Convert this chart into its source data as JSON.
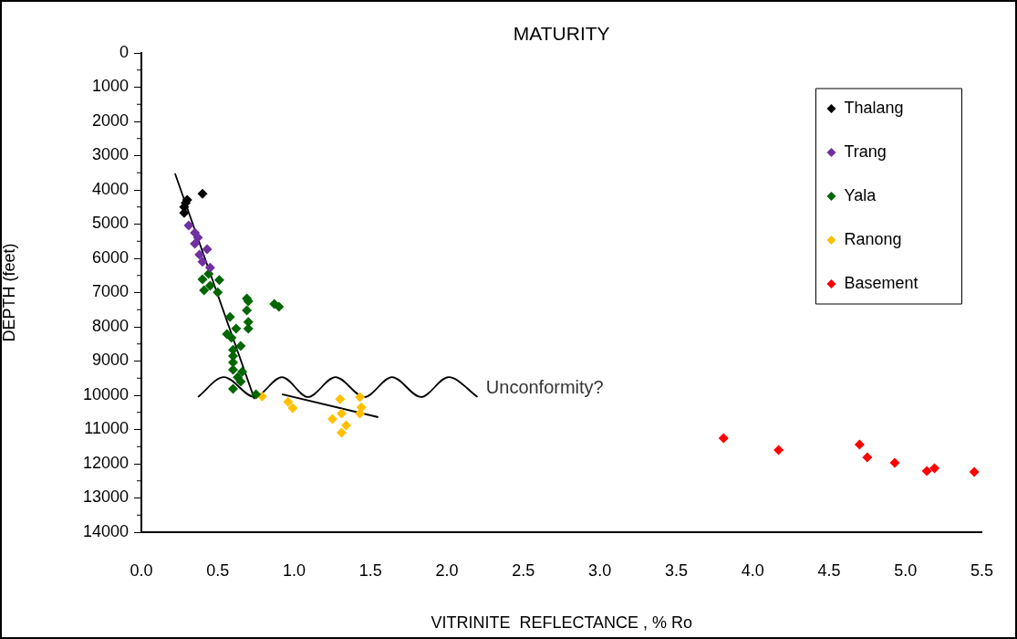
{
  "chart_data": {
    "type": "scatter",
    "title": "MATURITY",
    "xlabel": "VITRINITE  REFLECTANCE , % Ro",
    "ylabel": "DEPTH (feet)",
    "xlim": [
      0,
      5.5
    ],
    "xticks": [
      {
        "value": 0,
        "label": "0.0"
      },
      {
        "value": 0.5,
        "label": "0.5"
      },
      {
        "value": 1,
        "label": "1.0"
      },
      {
        "value": 1.5,
        "label": "1.5"
      },
      {
        "value": 2,
        "label": "2.0"
      },
      {
        "value": 2.5,
        "label": "2.5"
      },
      {
        "value": 3,
        "label": "3.0"
      },
      {
        "value": 3.5,
        "label": "3.5"
      },
      {
        "value": 4,
        "label": "4.0"
      },
      {
        "value": 4.5,
        "label": "4.5"
      },
      {
        "value": 5,
        "label": "5.0"
      },
      {
        "value": 5.5,
        "label": "5.5"
      }
    ],
    "ylim": [
      14000,
      0
    ],
    "yticks": [
      0,
      1000,
      2000,
      3000,
      4000,
      5000,
      6000,
      7000,
      8000,
      9000,
      10000,
      11000,
      12000,
      13000,
      14000
    ],
    "grid": false,
    "legend": "top right",
    "marker": "diamond",
    "annotations": [
      "Unconformity?"
    ],
    "series": [
      {
        "name": "Thalang",
        "color": "#000000",
        "x": [
          0.3,
          0.28,
          0.28,
          0.4,
          0.29
        ],
        "values": [
          4290,
          4500,
          4670,
          4110,
          4380
        ]
      },
      {
        "name": "Trang",
        "color": "#7030a0",
        "x": [
          0.31,
          0.35,
          0.37,
          0.35,
          0.43,
          0.38,
          0.4,
          0.45
        ],
        "values": [
          5040,
          5250,
          5390,
          5570,
          5730,
          5890,
          6100,
          6270
        ]
      },
      {
        "name": "Yala",
        "color": "#006600",
        "x": [
          0.44,
          0.4,
          0.51,
          0.45,
          0.41,
          0.5,
          0.69,
          0.7,
          0.87,
          0.9,
          0.69,
          0.58,
          0.7,
          0.7,
          0.62,
          0.56,
          0.59,
          0.65,
          0.6,
          0.6,
          0.6,
          0.66,
          0.6,
          0.63,
          0.65,
          0.6,
          0.75
        ],
        "values": [
          6450,
          6610,
          6630,
          6800,
          6930,
          6990,
          7170,
          7250,
          7330,
          7410,
          7520,
          7710,
          7860,
          8050,
          8050,
          8210,
          8320,
          8560,
          8670,
          8850,
          9040,
          9310,
          9250,
          9470,
          9600,
          9810,
          9970
        ]
      },
      {
        "name": "Ranong",
        "color": "#ffc000",
        "x": [
          0.79,
          0.96,
          0.99,
          1.3,
          1.43,
          1.44,
          1.31,
          1.43,
          1.25,
          1.34,
          1.31
        ],
        "values": [
          10030,
          10190,
          10370,
          10110,
          10050,
          10350,
          10530,
          10530,
          10690,
          10880,
          11090
        ]
      },
      {
        "name": "Basement",
        "color": "#ff0000",
        "x": [
          3.81,
          4.17,
          4.7,
          4.75,
          4.93,
          5.14,
          5.19,
          5.45
        ],
        "values": [
          11250,
          11600,
          11440,
          11810,
          11970,
          12210,
          12130,
          12240
        ]
      },
      {
        "type": "line",
        "color": "#000000",
        "marker": "none",
        "x": [
          0.22,
          0.74
        ],
        "values": [
          3520,
          10110
        ]
      },
      {
        "type": "line",
        "color": "#000000",
        "marker": "none",
        "x": [
          0.92,
          1.55
        ],
        "values": [
          9970,
          10640
        ]
      },
      {
        "type": "line",
        "color": "#000000",
        "marker": "none",
        "x": [
          0.37,
          0.54,
          0.74,
          0.92,
          1.09,
          1.27,
          1.46,
          1.64,
          1.83,
          2.01,
          2.2
        ],
        "values": [
          10050,
          9470,
          10050,
          9470,
          10050,
          9470,
          10050,
          9470,
          10050,
          9470,
          10050
        ]
      }
    ]
  }
}
